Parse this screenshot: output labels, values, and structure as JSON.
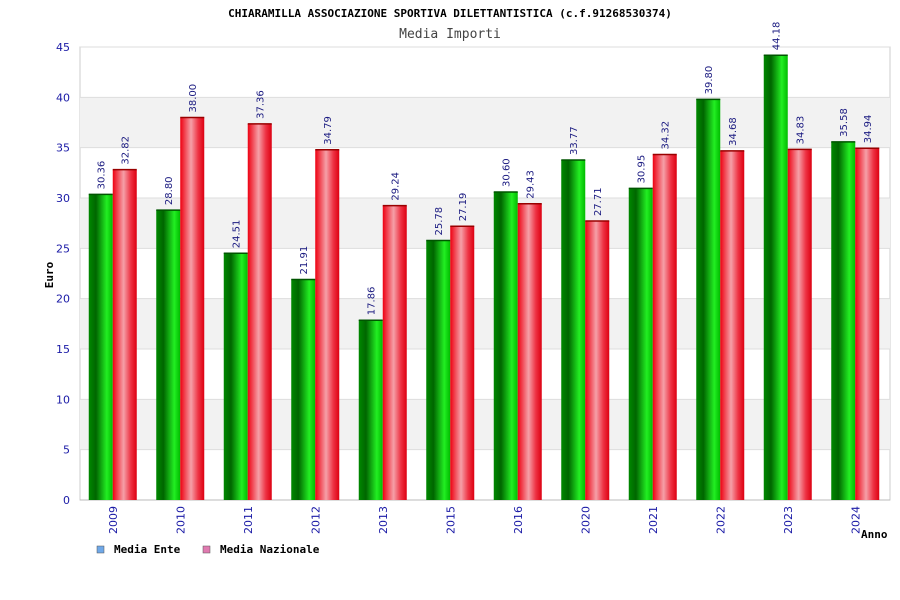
{
  "chart_data": {
    "type": "bar",
    "title": "CHIARAMILLA ASSOCIAZIONE SPORTIVA DILETTANTISTICA (c.f.91268530374)",
    "subtitle": "Media Importi",
    "xlabel": "Anno",
    "ylabel": "Euro",
    "ylim": [
      0,
      45
    ],
    "yticks": [
      0,
      5,
      10,
      15,
      20,
      25,
      30,
      35,
      40,
      45
    ],
    "grid": true,
    "legend_position": "bottom-left",
    "categories": [
      "2009",
      "2010",
      "2011",
      "2012",
      "2013",
      "2015",
      "2016",
      "2020",
      "2021",
      "2022",
      "2023",
      "2024"
    ],
    "series": [
      {
        "name": "Media Ente",
        "legend_color": "#6fa8e8",
        "color": "#00bb00",
        "values": [
          30.36,
          28.8,
          24.51,
          21.91,
          17.86,
          25.78,
          30.6,
          33.77,
          30.95,
          39.8,
          44.18,
          35.58
        ],
        "labels": [
          "30.36",
          "28.80",
          "24.51",
          "21.91",
          "17.86",
          "25.78",
          "30.60",
          "33.77",
          "30.95",
          "39.80",
          "44.18",
          "35.58"
        ]
      },
      {
        "name": "Media Nazionale",
        "legend_color": "#e07ab0",
        "color": "#ee1122",
        "values": [
          32.82,
          38.0,
          37.36,
          34.79,
          29.24,
          27.19,
          29.43,
          27.71,
          34.32,
          34.68,
          34.83,
          34.94
        ],
        "labels": [
          "32.82",
          "38.00",
          "37.36",
          "34.79",
          "29.24",
          "27.19",
          "29.43",
          "27.71",
          "34.32",
          "34.68",
          "34.83",
          "34.94"
        ]
      }
    ]
  }
}
